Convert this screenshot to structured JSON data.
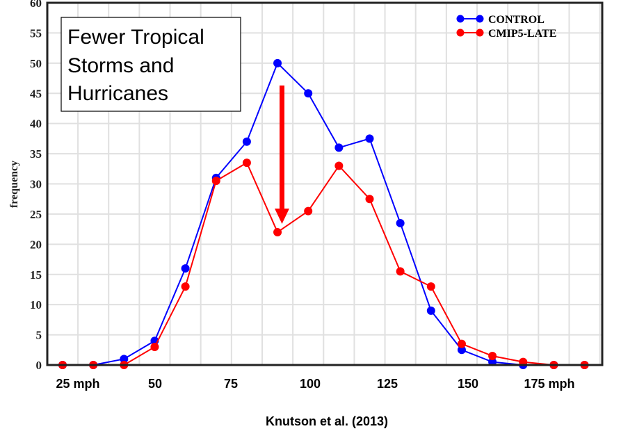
{
  "chart_data": {
    "type": "line",
    "title": "",
    "xlabel": "Knutson et al. (2013)",
    "ylabel": "frequency",
    "ylim": [
      0,
      60
    ],
    "yticks": [
      "0",
      "5",
      "10",
      "15",
      "20",
      "25",
      "30",
      "35",
      "40",
      "45",
      "50",
      "55",
      "60"
    ],
    "xtick_labels": [
      "25 mph",
      "50",
      "75",
      "100",
      "125",
      "150",
      "175 mph"
    ],
    "grid": true,
    "legend_position": "top-right",
    "annotation": [
      "Fewer Tropical",
      "Storms and",
      "Hurricanes"
    ],
    "series": [
      {
        "name": "CONTROL",
        "color": "#0000ff",
        "values": [
          0,
          0,
          1,
          4,
          16,
          31,
          37,
          50,
          45,
          36,
          37.5,
          23.5,
          9,
          2.5,
          0.5,
          0,
          0,
          0
        ]
      },
      {
        "name": "CMIP5-LATE",
        "color": "#ff0000",
        "values": [
          0,
          0,
          0,
          3,
          13,
          30.5,
          33.5,
          22,
          25.5,
          33,
          27.5,
          15.5,
          13,
          3.5,
          1.5,
          0.5,
          0,
          0
        ]
      }
    ]
  }
}
